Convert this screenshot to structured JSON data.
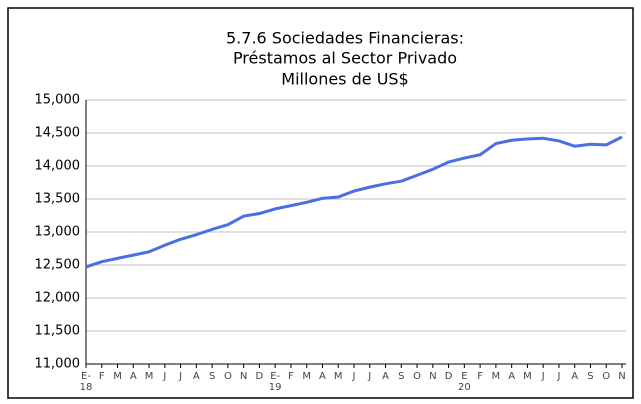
{
  "chart_data": {
    "type": "line",
    "title": [
      "5.7.6 Sociedades Financieras:",
      "Préstamos al Sector Privado",
      "Millones de US$"
    ],
    "categories": [
      "E-",
      "F",
      "M",
      "A",
      "M",
      "J",
      "J",
      "A",
      "S",
      "O",
      "N",
      "D",
      "E-",
      "F",
      "M",
      "A",
      "M",
      "J",
      "J",
      "A",
      "S",
      "O",
      "N",
      "D",
      "E",
      "F",
      "M",
      "A",
      "M",
      "J",
      "J",
      "A",
      "S",
      "O",
      "N"
    ],
    "year_labels": [
      "18",
      null,
      null,
      null,
      null,
      null,
      null,
      null,
      null,
      null,
      null,
      null,
      "19",
      null,
      null,
      null,
      null,
      null,
      null,
      null,
      null,
      null,
      null,
      null,
      "20",
      null,
      null,
      null,
      null,
      null,
      null,
      null,
      null,
      null,
      null
    ],
    "series": [
      {
        "color": "#4a6fe3",
        "values": [
          12470,
          12550,
          12600,
          12650,
          12700,
          12800,
          12890,
          12960,
          13040,
          13110,
          13240,
          13280,
          13350,
          13400,
          13450,
          13510,
          13530,
          13620,
          13680,
          13730,
          13770,
          13860,
          13950,
          14060,
          14120,
          14170,
          14340,
          14390,
          14410,
          14420,
          14380,
          14300,
          14330,
          14320,
          14440
        ]
      }
    ],
    "ylim": [
      11000,
      15000
    ],
    "yticks": [
      {
        "value": 11000,
        "label": "11,000"
      },
      {
        "value": 11500,
        "label": "11,500"
      },
      {
        "value": 12000,
        "label": "12,000"
      },
      {
        "value": 12500,
        "label": "12,500"
      },
      {
        "value": 13000,
        "label": "13,000"
      },
      {
        "value": 13500,
        "label": "13,500"
      },
      {
        "value": 14000,
        "label": "14,000"
      },
      {
        "value": 14500,
        "label": "14,500"
      },
      {
        "value": 15000,
        "label": "15,000"
      }
    ],
    "grid": true
  }
}
